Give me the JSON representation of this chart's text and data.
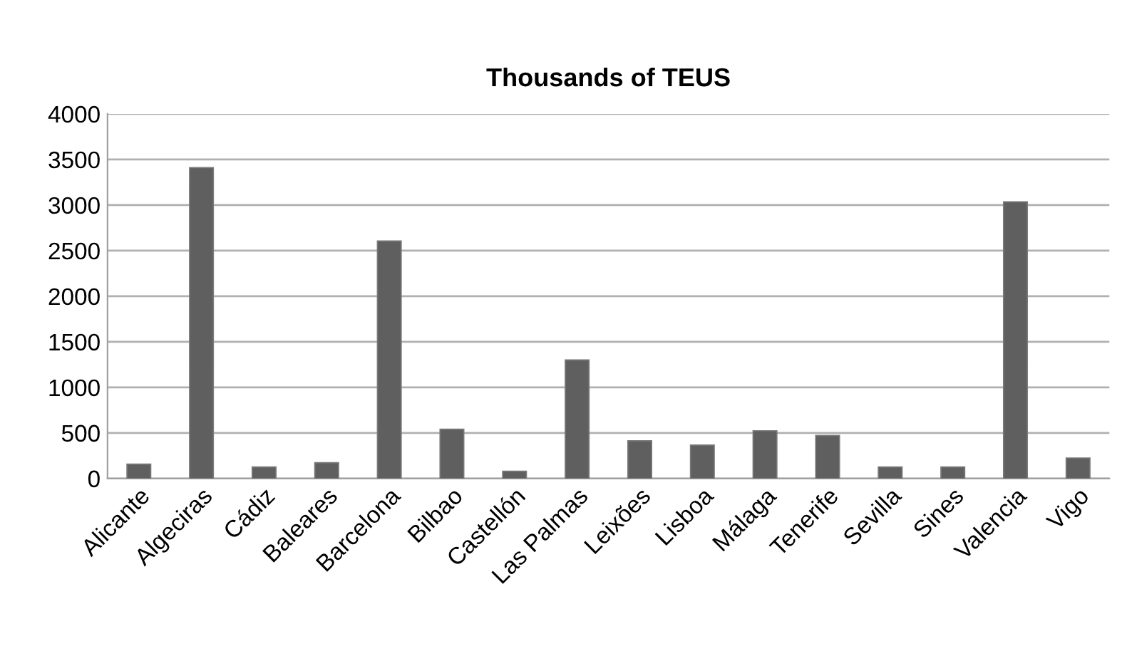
{
  "chart_data": {
    "type": "bar",
    "title": "Thousands of TEUS",
    "categories": [
      "Alicante",
      "Algeciras",
      "Cádiz",
      "Baleares",
      "Barcelona",
      "Bilbao",
      "Castellón",
      "Las Palmas",
      "Leixões",
      "Lisboa",
      "Málaga",
      "Tenerife",
      "Sevilla",
      "Sines",
      "Valencia",
      "Vigo"
    ],
    "values": [
      157,
      3410,
      126,
      173,
      2605,
      540,
      79,
      1300,
      414,
      367,
      524,
      472,
      126,
      126,
      3035,
      225
    ],
    "color": "#5f5f5f",
    "ylim": [
      0,
      4000
    ],
    "yticks": [
      0,
      500,
      1000,
      1500,
      2000,
      2500,
      3000,
      3500,
      4000
    ],
    "grid": "y",
    "legend": false
  }
}
